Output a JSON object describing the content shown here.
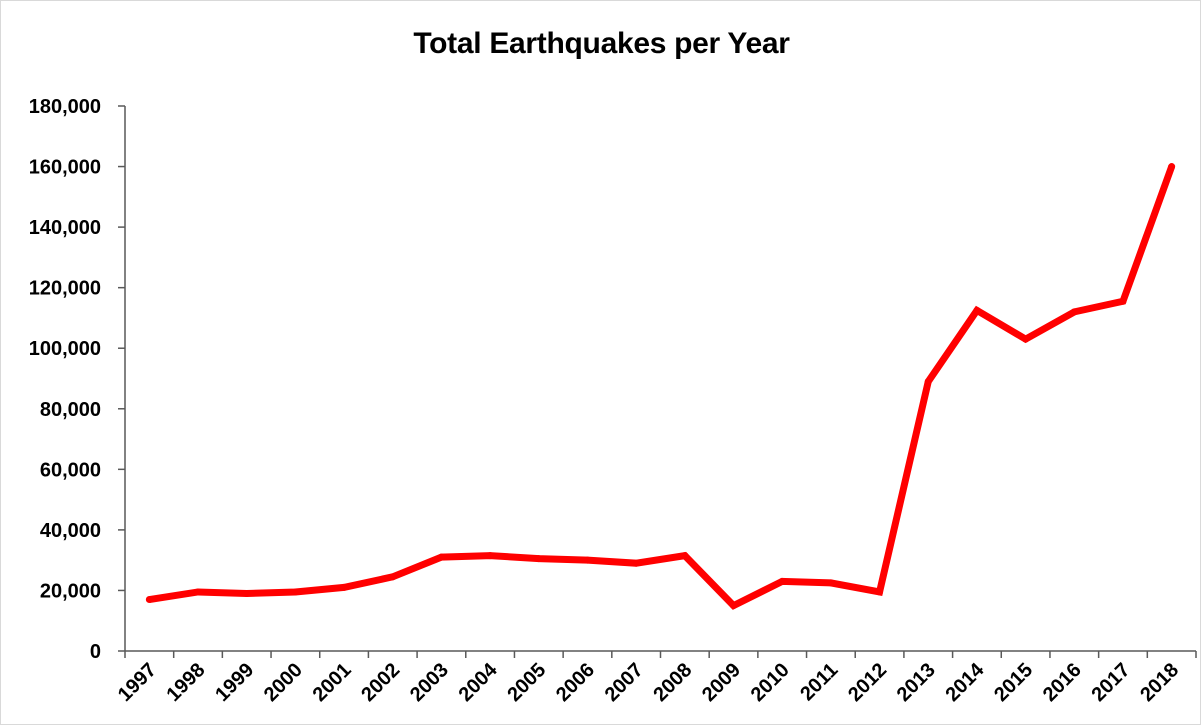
{
  "chart_data": {
    "type": "line",
    "title": "Total Earthquakes per Year",
    "xlabel": "",
    "ylabel": "",
    "categories": [
      "1997",
      "1998",
      "1999",
      "2000",
      "2001",
      "2002",
      "2003",
      "2004",
      "2005",
      "2006",
      "2007",
      "2008",
      "2009",
      "2010",
      "2011",
      "2012",
      "2013",
      "2014",
      "2015",
      "2016",
      "2017",
      "2018"
    ],
    "series": [
      {
        "values": [
          17000,
          19500,
          19000,
          19500,
          21000,
          24500,
          31000,
          31500,
          30500,
          30000,
          29000,
          31500,
          15000,
          23000,
          22500,
          19500,
          89000,
          112500,
          103000,
          112000,
          115500,
          160000
        ],
        "color": "#ff0000"
      }
    ],
    "ylim": [
      0,
      180000
    ],
    "yticks": [
      0,
      20000,
      40000,
      60000,
      80000,
      100000,
      120000,
      140000,
      160000,
      180000
    ],
    "ytick_labels": [
      "0",
      "20,000",
      "40,000",
      "60,000",
      "80,000",
      "100,000",
      "120,000",
      "140,000",
      "160,000",
      "180,000"
    ],
    "grid": false,
    "legend": "none",
    "axis_color": "#595959"
  }
}
